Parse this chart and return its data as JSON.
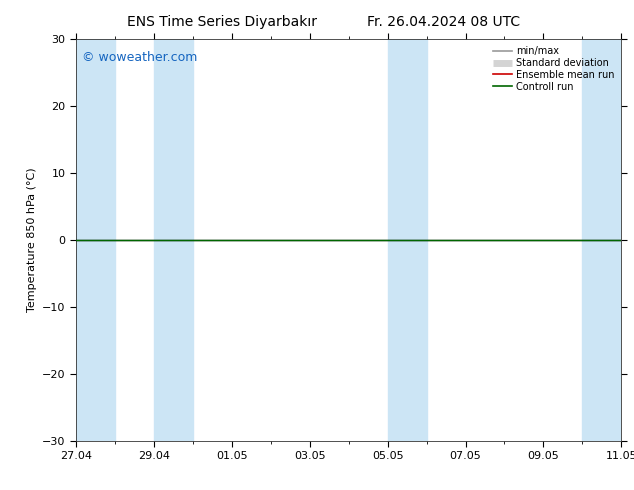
{
  "title_left": "ENS Time Series Diyarbakır",
  "title_right": "Fr. 26.04.2024 08 UTC",
  "ylabel": "Temperature 850 hPa (°C)",
  "watermark": "© woweather.com",
  "ylim": [
    -30,
    30
  ],
  "yticks": [
    -30,
    -20,
    -10,
    0,
    10,
    20,
    30
  ],
  "x_tick_labels": [
    "27.04",
    "29.04",
    "01.05",
    "03.05",
    "05.05",
    "07.05",
    "09.05",
    "11.05"
  ],
  "x_tick_positions": [
    0,
    2,
    4,
    6,
    8,
    10,
    12,
    14
  ],
  "x_total_days": 14,
  "shaded_bands": [
    [
      0,
      1
    ],
    [
      2,
      3
    ],
    [
      8,
      9
    ],
    [
      13,
      14
    ]
  ],
  "band_color": "#cce5f5",
  "background_color": "#ffffff",
  "plot_bg_color": "#ffffff",
  "legend_entries": [
    "min/max",
    "Standard deviation",
    "Ensemble mean run",
    "Controll run"
  ],
  "legend_colors_line": [
    "#aaaaaa",
    "#aaaaaa",
    "#cc0000",
    "#006600"
  ],
  "legend_colors_fill": [
    "#aaaaaa",
    "#cce5f5",
    null,
    null
  ],
  "zero_line_color": "#000000",
  "green_line_color": "#006600",
  "title_fontsize": 10,
  "tick_fontsize": 8,
  "ylabel_fontsize": 8,
  "watermark_color": "#1565c0",
  "watermark_fontsize": 9
}
